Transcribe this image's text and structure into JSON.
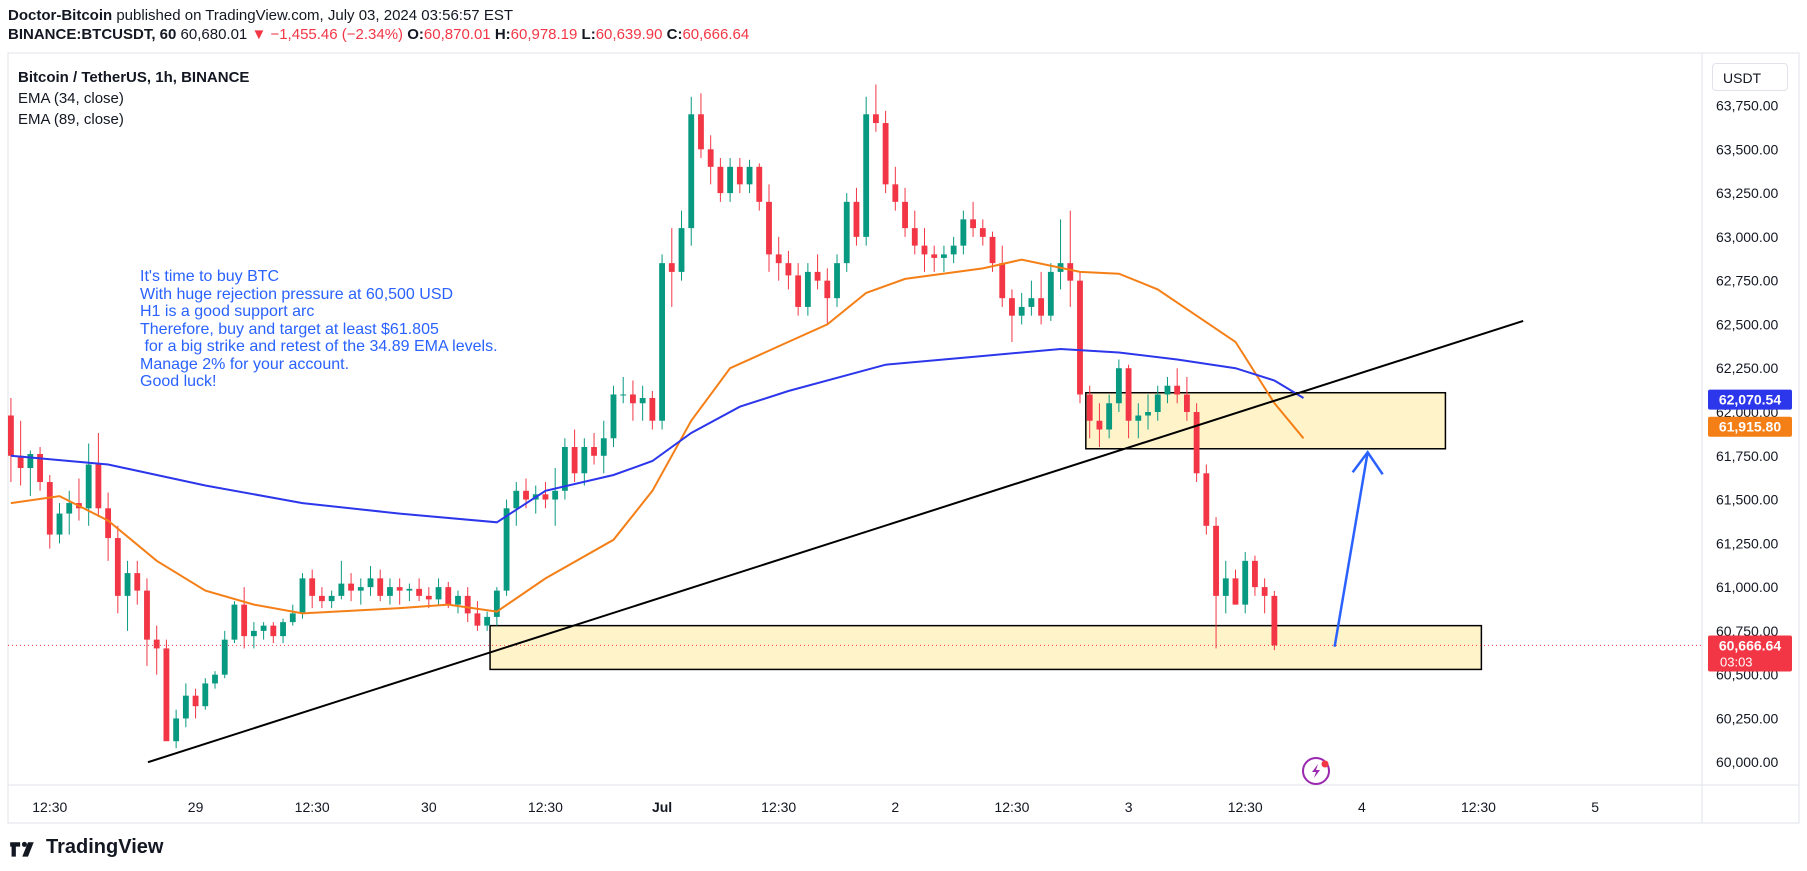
{
  "header": {
    "publisher": "Doctor-Bitcoin",
    "published_text": "published on TradingView.com, July 03, 2024 03:56:57 EST",
    "symbol": "BINANCE:BTCUSDT, 60",
    "last": "60,680.01",
    "change": "▼ −1,455.46 (−2.34%)",
    "o_label": "O:",
    "o": "60,870.01",
    "h_label": "H:",
    "h": "60,978.19",
    "l_label": "L:",
    "l": "60,639.90",
    "c_label": "C:",
    "c": "60,666.64"
  },
  "legend": {
    "title": "Bitcoin / TetherUS, 1h, BINANCE",
    "ema34": "EMA (34, close)",
    "ema89": "EMA (89, close)"
  },
  "currency": "USDT",
  "note": "It's time to buy BTC\nWith huge rejection pressure at 60,500 USD\nH1 is a good support arc\nTherefore, buy and target at least $61.805\n for a big strike and retest of the 34.89 EMA levels.\nManage 2% for your account.\nGood luck!",
  "footer": {
    "brand": "TradingView"
  },
  "chart_data": {
    "type": "candlestick",
    "title": "Bitcoin / TetherUS, 1h, BINANCE",
    "y_ticks": [
      "60,000.00",
      "60,250.00",
      "60,500.00",
      "60,750.00",
      "61,000.00",
      "61,250.00",
      "61,500.00",
      "61,750.00",
      "62,000.00",
      "62,250.00",
      "62,500.00",
      "62,750.00",
      "63,000.00",
      "63,250.00",
      "63,500.00",
      "63,750.00"
    ],
    "y_tick_values": [
      60000,
      60250,
      60500,
      60750,
      61000,
      61250,
      61500,
      61750,
      62000,
      62250,
      62500,
      62750,
      63000,
      63250,
      63500,
      63750
    ],
    "x_ticks": [
      "12:30",
      "29",
      "12:30",
      "30",
      "12:30",
      "Jul",
      "12:30",
      "2",
      "12:30",
      "3",
      "12:30",
      "4",
      "12:30",
      "5"
    ],
    "x_tick_bars": [
      4,
      19,
      31,
      43,
      55,
      67,
      79,
      91,
      103,
      115,
      127,
      139,
      151,
      163
    ],
    "ylim": [
      59870,
      64050
    ],
    "bar_range": [
      -0.3,
      174
    ],
    "candles": [
      [
        61980,
        62080,
        61600,
        61750
      ],
      [
        61750,
        61950,
        61580,
        61680
      ],
      [
        61680,
        61780,
        61520,
        61760
      ],
      [
        61760,
        61800,
        61550,
        61600
      ],
      [
        61600,
        61640,
        61220,
        61300
      ],
      [
        61300,
        61480,
        61250,
        61420
      ],
      [
        61420,
        61550,
        61300,
        61480
      ],
      [
        61480,
        61620,
        61380,
        61450
      ],
      [
        61450,
        61820,
        61350,
        61700
      ],
      [
        61700,
        61880,
        61400,
        61450
      ],
      [
        61450,
        61540,
        61150,
        61280
      ],
      [
        61280,
        61350,
        60850,
        60950
      ],
      [
        60950,
        61150,
        60750,
        61080
      ],
      [
        61080,
        61150,
        60900,
        60980
      ],
      [
        60980,
        61050,
        60550,
        60700
      ],
      [
        60700,
        60780,
        60500,
        60650
      ],
      [
        60650,
        60700,
        60140,
        60120
      ],
      [
        60120,
        60300,
        60080,
        60250
      ],
      [
        60250,
        60450,
        60200,
        60380
      ],
      [
        60380,
        60420,
        60250,
        60320
      ],
      [
        60320,
        60480,
        60300,
        60450
      ],
      [
        60450,
        60520,
        60420,
        60500
      ],
      [
        60500,
        60750,
        60480,
        60700
      ],
      [
        60700,
        60920,
        60680,
        60900
      ],
      [
        60900,
        61000,
        60650,
        60720
      ],
      [
        60720,
        60800,
        60650,
        60750
      ],
      [
        60750,
        60800,
        60700,
        60780
      ],
      [
        60780,
        60800,
        60680,
        60720
      ],
      [
        60720,
        60820,
        60680,
        60800
      ],
      [
        60800,
        60900,
        60780,
        60850
      ],
      [
        60850,
        61080,
        60820,
        61050
      ],
      [
        61050,
        61100,
        60880,
        60950
      ],
      [
        60950,
        61000,
        60880,
        60920
      ],
      [
        60920,
        60980,
        60880,
        60950
      ],
      [
        60950,
        61150,
        60930,
        61020
      ],
      [
        61020,
        61080,
        60920,
        60980
      ],
      [
        60980,
        61050,
        60900,
        61000
      ],
      [
        61000,
        61120,
        60950,
        61050
      ],
      [
        61050,
        61100,
        60920,
        60950
      ],
      [
        60950,
        61050,
        60900,
        61000
      ],
      [
        61000,
        61050,
        60900,
        60980
      ],
      [
        60980,
        61020,
        60920,
        60990
      ],
      [
        60990,
        61050,
        60920,
        60950
      ],
      [
        60950,
        61000,
        60880,
        60930
      ],
      [
        60930,
        61050,
        60900,
        61000
      ],
      [
        61000,
        61030,
        60880,
        60900
      ],
      [
        60900,
        60980,
        60850,
        60950
      ],
      [
        60950,
        61000,
        60800,
        60850
      ],
      [
        60850,
        60920,
        60750,
        60780
      ],
      [
        60780,
        60860,
        60750,
        60830
      ],
      [
        60830,
        61000,
        60780,
        60980
      ],
      [
        60980,
        61500,
        60950,
        61450
      ],
      [
        61450,
        61600,
        61350,
        61550
      ],
      [
        61550,
        61620,
        61450,
        61500
      ],
      [
        61500,
        61580,
        61420,
        61530
      ],
      [
        61530,
        61600,
        61450,
        61500
      ],
      [
        61500,
        61680,
        61350,
        61550
      ],
      [
        61550,
        61850,
        61500,
        61800
      ],
      [
        61800,
        61900,
        61600,
        61650
      ],
      [
        61650,
        61850,
        61580,
        61800
      ],
      [
        61800,
        61880,
        61700,
        61750
      ],
      [
        61750,
        61950,
        61650,
        61850
      ],
      [
        61850,
        62150,
        61800,
        62100
      ],
      [
        62100,
        62200,
        62050,
        62100
      ],
      [
        62100,
        62180,
        61950,
        62050
      ],
      [
        62050,
        62150,
        61950,
        62080
      ],
      [
        62080,
        62120,
        61900,
        61950
      ],
      [
        61950,
        62900,
        61900,
        62850
      ],
      [
        62850,
        63050,
        62600,
        62800
      ],
      [
        62800,
        63150,
        62750,
        63050
      ],
      [
        63050,
        63800,
        62950,
        63700
      ],
      [
        63700,
        63820,
        63450,
        63500
      ],
      [
        63500,
        63580,
        63300,
        63400
      ],
      [
        63400,
        63450,
        63200,
        63250
      ],
      [
        63250,
        63450,
        63200,
        63400
      ],
      [
        63400,
        63450,
        63250,
        63300
      ],
      [
        63300,
        63440,
        63250,
        63400
      ],
      [
        63400,
        63420,
        63150,
        63200
      ],
      [
        63200,
        63300,
        62800,
        62900
      ],
      [
        62900,
        63000,
        62750,
        62850
      ],
      [
        62850,
        62920,
        62700,
        62780
      ],
      [
        62780,
        62850,
        62550,
        62600
      ],
      [
        62600,
        62850,
        62550,
        62800
      ],
      [
        62800,
        62900,
        62700,
        62750
      ],
      [
        62750,
        62820,
        62500,
        62650
      ],
      [
        62650,
        62900,
        62600,
        62850
      ],
      [
        62850,
        63250,
        62800,
        63200
      ],
      [
        63200,
        63280,
        62950,
        63000
      ],
      [
        63000,
        63800,
        62950,
        63700
      ],
      [
        63700,
        63870,
        63600,
        63650
      ],
      [
        63650,
        63720,
        63250,
        63300
      ],
      [
        63300,
        63400,
        63150,
        63200
      ],
      [
        63200,
        63280,
        63000,
        63050
      ],
      [
        63050,
        63150,
        62900,
        62950
      ],
      [
        62950,
        63050,
        62800,
        62900
      ],
      [
        62900,
        62950,
        62800,
        62880
      ],
      [
        62880,
        62950,
        62800,
        62900
      ],
      [
        62900,
        63000,
        62850,
        62950
      ],
      [
        62950,
        63150,
        62900,
        63100
      ],
      [
        63100,
        63200,
        63000,
        63050
      ],
      [
        63050,
        63100,
        62950,
        63000
      ],
      [
        63000,
        63030,
        62800,
        62850
      ],
      [
        62850,
        62950,
        62600,
        62650
      ],
      [
        62650,
        62700,
        62400,
        62550
      ],
      [
        62550,
        62680,
        62500,
        62600
      ],
      [
        62600,
        62750,
        62550,
        62650
      ],
      [
        62650,
        62800,
        62500,
        62550
      ],
      [
        62550,
        62850,
        62520,
        62800
      ],
      [
        62800,
        63100,
        62700,
        62850
      ],
      [
        62850,
        63150,
        62600,
        62750
      ],
      [
        62750,
        62800,
        62050,
        62100
      ],
      [
        62100,
        62150,
        61850,
        61950
      ],
      [
        61950,
        62050,
        61800,
        61900
      ],
      [
        61900,
        62100,
        61850,
        62050
      ],
      [
        62050,
        62300,
        62000,
        62250
      ],
      [
        62250,
        62270,
        61850,
        61950
      ],
      [
        61950,
        62050,
        61850,
        61980
      ],
      [
        61980,
        62100,
        61900,
        62000
      ],
      [
        62000,
        62150,
        61950,
        62100
      ],
      [
        62100,
        62200,
        62050,
        62150
      ],
      [
        62150,
        62250,
        62050,
        62100
      ],
      [
        62100,
        62200,
        61950,
        62000
      ],
      [
        62000,
        62050,
        61600,
        61650
      ],
      [
        61650,
        61700,
        61300,
        61350
      ],
      [
        61350,
        61400,
        60650,
        60950
      ],
      [
        60950,
        61150,
        60850,
        61050
      ],
      [
        61050,
        61100,
        60900,
        60900
      ],
      [
        60900,
        61200,
        60850,
        61150
      ],
      [
        61150,
        61180,
        60950,
        61000
      ],
      [
        61000,
        61050,
        60850,
        60950
      ],
      [
        60950,
        60978,
        60640,
        60667
      ]
    ],
    "ema34": [
      [
        0,
        61480
      ],
      [
        5,
        61520
      ],
      [
        10,
        61380
      ],
      [
        15,
        61150
      ],
      [
        20,
        60980
      ],
      [
        25,
        60900
      ],
      [
        30,
        60850
      ],
      [
        40,
        60880
      ],
      [
        45,
        60900
      ],
      [
        50,
        60860
      ],
      [
        55,
        61050
      ],
      [
        62,
        61270
      ],
      [
        66,
        61550
      ],
      [
        70,
        61950
      ],
      [
        74,
        62250
      ],
      [
        80,
        62400
      ],
      [
        84,
        62500
      ],
      [
        88,
        62680
      ],
      [
        92,
        62760
      ],
      [
        100,
        62820
      ],
      [
        104,
        62870
      ],
      [
        110,
        62800
      ],
      [
        114,
        62790
      ],
      [
        118,
        62700
      ],
      [
        122,
        62550
      ],
      [
        126,
        62400
      ],
      [
        130,
        62050
      ],
      [
        133,
        61850
      ]
    ],
    "ema89": [
      [
        0,
        61750
      ],
      [
        10,
        61700
      ],
      [
        20,
        61580
      ],
      [
        30,
        61480
      ],
      [
        40,
        61420
      ],
      [
        50,
        61370
      ],
      [
        55,
        61550
      ],
      [
        62,
        61640
      ],
      [
        66,
        61720
      ],
      [
        70,
        61880
      ],
      [
        75,
        62030
      ],
      [
        80,
        62120
      ],
      [
        90,
        62270
      ],
      [
        100,
        62320
      ],
      [
        108,
        62360
      ],
      [
        114,
        62340
      ],
      [
        120,
        62300
      ],
      [
        126,
        62250
      ],
      [
        130,
        62180
      ],
      [
        133,
        62080
      ]
    ],
    "trendline": [
      [
        14.1,
        60000
      ],
      [
        155.6,
        62520
      ]
    ],
    "zones": [
      {
        "x0": 49.3,
        "x1": 151.3,
        "y_top": 60780,
        "y_bottom": 60530
      },
      {
        "x0": 110.6,
        "x1": 147.6,
        "y_top": 62110,
        "y_bottom": 61790
      }
    ],
    "arrow": [
      [
        136.2,
        60660
      ],
      [
        139.6,
        61770
      ]
    ],
    "price_labels": [
      {
        "text": "62,070.54",
        "value": 62070.54,
        "color": "#2c36eb"
      },
      {
        "text": "61,915.80",
        "value": 61915.8,
        "color": "#f57f17"
      },
      {
        "text": "60,666.64",
        "sub": "03:03",
        "value": 60666.64,
        "color": "#f23645"
      }
    ],
    "colors": {
      "up": "#089981",
      "down": "#f23645",
      "ema34": "#f57f17",
      "ema89": "#2c36eb",
      "zone_fill": "#fff4c9",
      "arrow": "#2962ff"
    }
  }
}
